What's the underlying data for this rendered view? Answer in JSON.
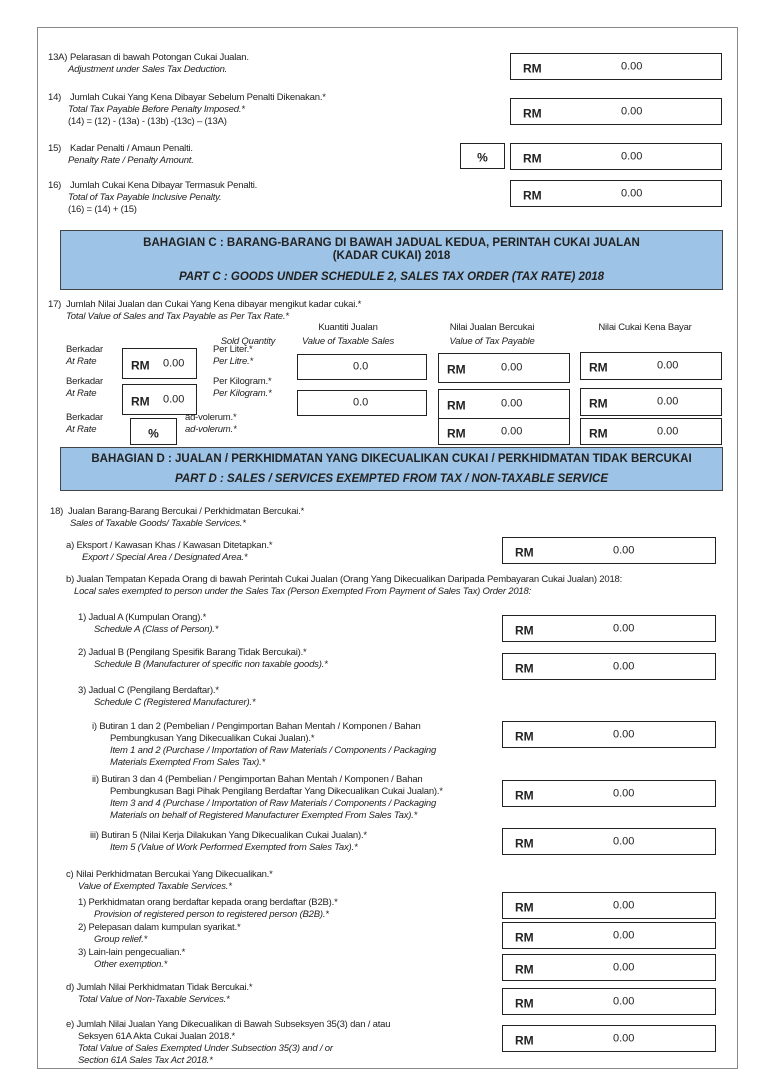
{
  "currency": "RM",
  "percent": "%",
  "items": {
    "s13A": {
      "num": "13A)",
      "ms": "Pelarasan di bawah Potongan Cukai Jualan.",
      "en": "Adjustment under Sales Tax Deduction.",
      "value": "0.00"
    },
    "s14": {
      "num": "14)",
      "ms": "Jumlah Cukai Yang Kena Dibayar Sebelum Penalti Dikenakan.*",
      "en": "Total Tax Payable Before Penalty Imposed.*",
      "formula": "(14) = (12) - (13a) - (13b) -(13c)  – (13A)",
      "value": "0.00"
    },
    "s15": {
      "num": "15)",
      "ms": "Kadar Penalti / Amaun Penalti.",
      "en": "Penalty Rate / Penalty Amount.",
      "value": "0.00"
    },
    "s16": {
      "num": "16)",
      "ms": "Jumlah Cukai Kena Dibayar Termasuk Penalti.",
      "en": "Total of Tax Payable Inclusive Penalty.",
      "formula": "(16) = (14) + (15)",
      "value": "0.00"
    }
  },
  "part_c": {
    "title_ms_1": "BAHAGIAN C : BARANG-BARANG DI BAWAH JADUAL KEDUA, PERINTAH CUKAI JUALAN",
    "title_ms_2": "(KADAR CUKAI) 2018",
    "title_en": "PART C : GOODS UNDER SCHEDULE 2, SALES TAX ORDER (TAX RATE) 2018",
    "q17": {
      "num": "17)",
      "ms": "Jumlah Nilai Jualan dan Cukai Yang Kena dibayar mengikut kadar cukai.*",
      "en": "Total Value of Sales and Tax Payable as Per Tax Rate.*"
    },
    "headers": {
      "sold_quantity": "Sold Quantity",
      "qty_ms": "Kuantiti Jualan",
      "qty_en": "Value of Taxable Sales",
      "sales_ms": "Nilai Jualan Bercukai",
      "sales_en": "Value of Tax Payable",
      "tax_ms": "Nilai Cukai Kena Bayar"
    },
    "rows": [
      {
        "rate_ms": "Berkadar",
        "rate_en": "At Rate",
        "rate_value": "0.00",
        "unit_ms": "Per Liter.*",
        "unit_en": "Per Litre.*",
        "quantity": "0.0",
        "sales_value": "0.00",
        "tax_value": "0.00"
      },
      {
        "rate_ms": "Berkadar",
        "rate_en": "At Rate",
        "rate_value": "0.00",
        "unit_ms": "Per Kilogram.*",
        "unit_en": "Per Kilogram.*",
        "quantity": "0.0",
        "sales_value": "0.00",
        "tax_value": "0.00"
      },
      {
        "rate_ms": "Berkadar",
        "rate_en": "At Rate",
        "unit_ms": "ad-volerum.*",
        "unit_en": "ad-volerum.*",
        "sales_value": "0.00",
        "tax_value": "0.00"
      }
    ]
  },
  "part_d": {
    "title_ms": "BAHAGIAN D : JUALAN / PERKHIDMATAN YANG DIKECUALIKAN CUKAI / PERKHIDMATAN TIDAK BERCUKAI",
    "title_en": "PART D : SALES / SERVICES EXEMPTED FROM TAX / NON-TAXABLE SERVICE",
    "q18": {
      "num": "18)",
      "ms": "Jualan Barang-Barang Bercukai / Perkhidmatan Bercukai.*",
      "en": "Sales of Taxable Goods/ Taxable Services.*"
    },
    "a": {
      "ms": "a)  Eksport / Kawasan Khas / Kawasan Ditetapkan.*",
      "en": "Export / Special Area / Designated Area.*",
      "value": "0.00"
    },
    "b": {
      "ms": "b) Jualan Tempatan Kepada Orang di bawah Perintah Cukai Jualan  (Orang Yang Dikecualikan Daripada Pembayaran Cukai Jualan) 2018:",
      "en": "Local sales exempted to person under the Sales Tax (Person Exempted From Payment of Sales Tax) Order 2018:"
    },
    "b1": {
      "ms": "1)  Jadual A (Kumpulan Orang).*",
      "en": "Schedule A (Class of Person).*",
      "value": "0.00"
    },
    "b2": {
      "ms": "2)  Jadual B (Pengilang Spesifik Barang Tidak Bercukai).*",
      "en": "Schedule B (Manufacturer of specific non taxable goods).*",
      "value": "0.00"
    },
    "b3": {
      "ms": "3)  Jadual C (Pengilang Berdaftar).*",
      "en": "Schedule C (Registered Manufacturer).*"
    },
    "b3i": {
      "ms1": "i)  Butiran 1 dan 2 (Pembelian / Pengimportan Bahan Mentah / Komponen / Bahan",
      "ms2": "Pembungkusan Yang Dikecualikan Cukai Jualan).*",
      "en1": "Item 1 and 2 (Purchase / Importation of Raw Materials / Components / Packaging",
      "en2": "Materials Exempted From Sales Tax).*",
      "value": "0.00"
    },
    "b3ii": {
      "ms1": "ii)  Butiran 3 dan 4 (Pembelian / Pengimportan Bahan Mentah / Komponen / Bahan",
      "ms2": "Pembungkusan Bagi Pihak Pengilang Berdaftar Yang Dikecualikan Cukai Jualan).*",
      "en1": "Item 3 and 4 (Purchase / Importation of Raw Materials / Components / Packaging",
      "en2": "Materials on behalf of Registered Manufacturer Exempted From Sales Tax).*",
      "value": "0.00"
    },
    "b3iii": {
      "ms": "iii)  Butiran 5 (Nilai Kerja Dilakukan Yang Dikecualikan Cukai Jualan).*",
      "en": "Item 5 (Value of Work Performed Exempted from Sales Tax).*",
      "value": "0.00"
    },
    "c": {
      "ms": "c)  Nilai Perkhidmatan Bercukai Yang  Dikecualikan.*",
      "en": "Value of Exempted Taxable Services.*"
    },
    "c1": {
      "ms": "1)  Perkhidmatan orang berdaftar kepada orang berdaftar (B2B).*",
      "en": "Provision of registered person to registered person (B2B).*",
      "value": "0.00"
    },
    "c2": {
      "ms": "2)  Pelepasan dalam kumpulan syarikat.*",
      "en": "Group relief.*",
      "value": "0.00"
    },
    "c3": {
      "ms": "3)  Lain-lain pengecualian.*",
      "en": "Other exemption.*",
      "value": "0.00"
    },
    "d": {
      "ms": "d) Jumlah Nilai Perkhidmatan Tidak Bercukai.*",
      "en": "Total Value of Non-Taxable Services.*",
      "value": "0.00"
    },
    "e": {
      "ms1": "e) Jumlah Nilai Jualan Yang Dikecualikan di Bawah Subseksyen 35(3) dan / atau",
      "ms2": "Seksyen 61A Akta Cukai Jualan 2018.*",
      "en1": "Total Value of Sales Exempted Under Subsection 35(3) and / or",
      "en2": "Section 61A Sales Tax Act 2018.*",
      "value": "0.00"
    }
  }
}
